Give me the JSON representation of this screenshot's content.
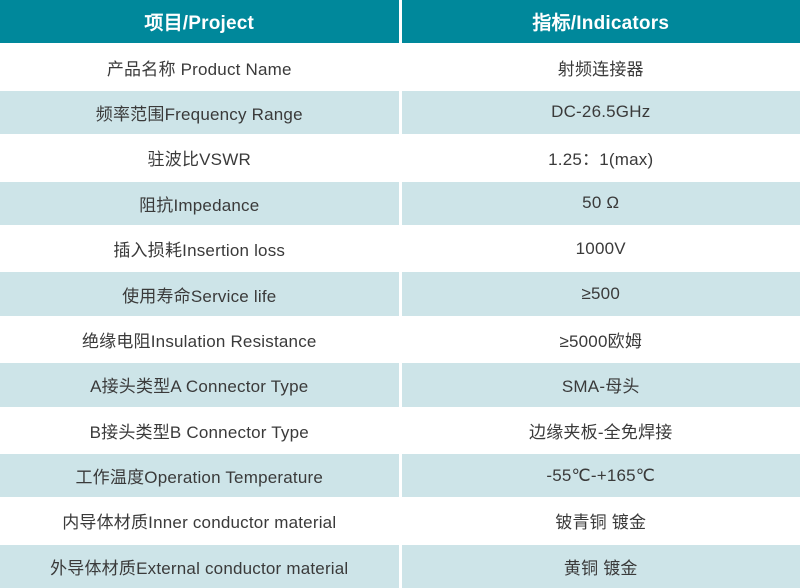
{
  "colors": {
    "accent": "#00889B",
    "row_alt": "#cde4e8",
    "text": "#3a3a3a",
    "header_text": "#ffffff"
  },
  "header": {
    "col1": "项目/Project",
    "col2": "指标/Indicators"
  },
  "rows": [
    {
      "project": "产品名称 Product Name",
      "indicator": "射频连接器"
    },
    {
      "project": "频率范围Frequency Range",
      "indicator": "DC-26.5GHz"
    },
    {
      "project": "驻波比VSWR",
      "indicator": "1.25：1(max)"
    },
    {
      "project": "阻抗Impedance",
      "indicator": "50 Ω"
    },
    {
      "project": "插入损耗Insertion loss",
      "indicator": "1000V"
    },
    {
      "project": "使用寿命Service life",
      "indicator": "≥500"
    },
    {
      "project": "绝缘电阻Insulation Resistance",
      "indicator": "≥5000欧姆"
    },
    {
      "project": "A接头类型A Connector Type",
      "indicator": "SMA-母头"
    },
    {
      "project": "B接头类型B Connector Type",
      "indicator": "边缘夹板-全免焊接"
    },
    {
      "project": "工作温度Operation Temperature",
      "indicator": "-55℃-+165℃"
    },
    {
      "project": "内导体材质Inner conductor material",
      "indicator": "铍青铜 镀金"
    },
    {
      "project": "外导体材质External conductor material",
      "indicator": "黄铜 镀金"
    }
  ]
}
